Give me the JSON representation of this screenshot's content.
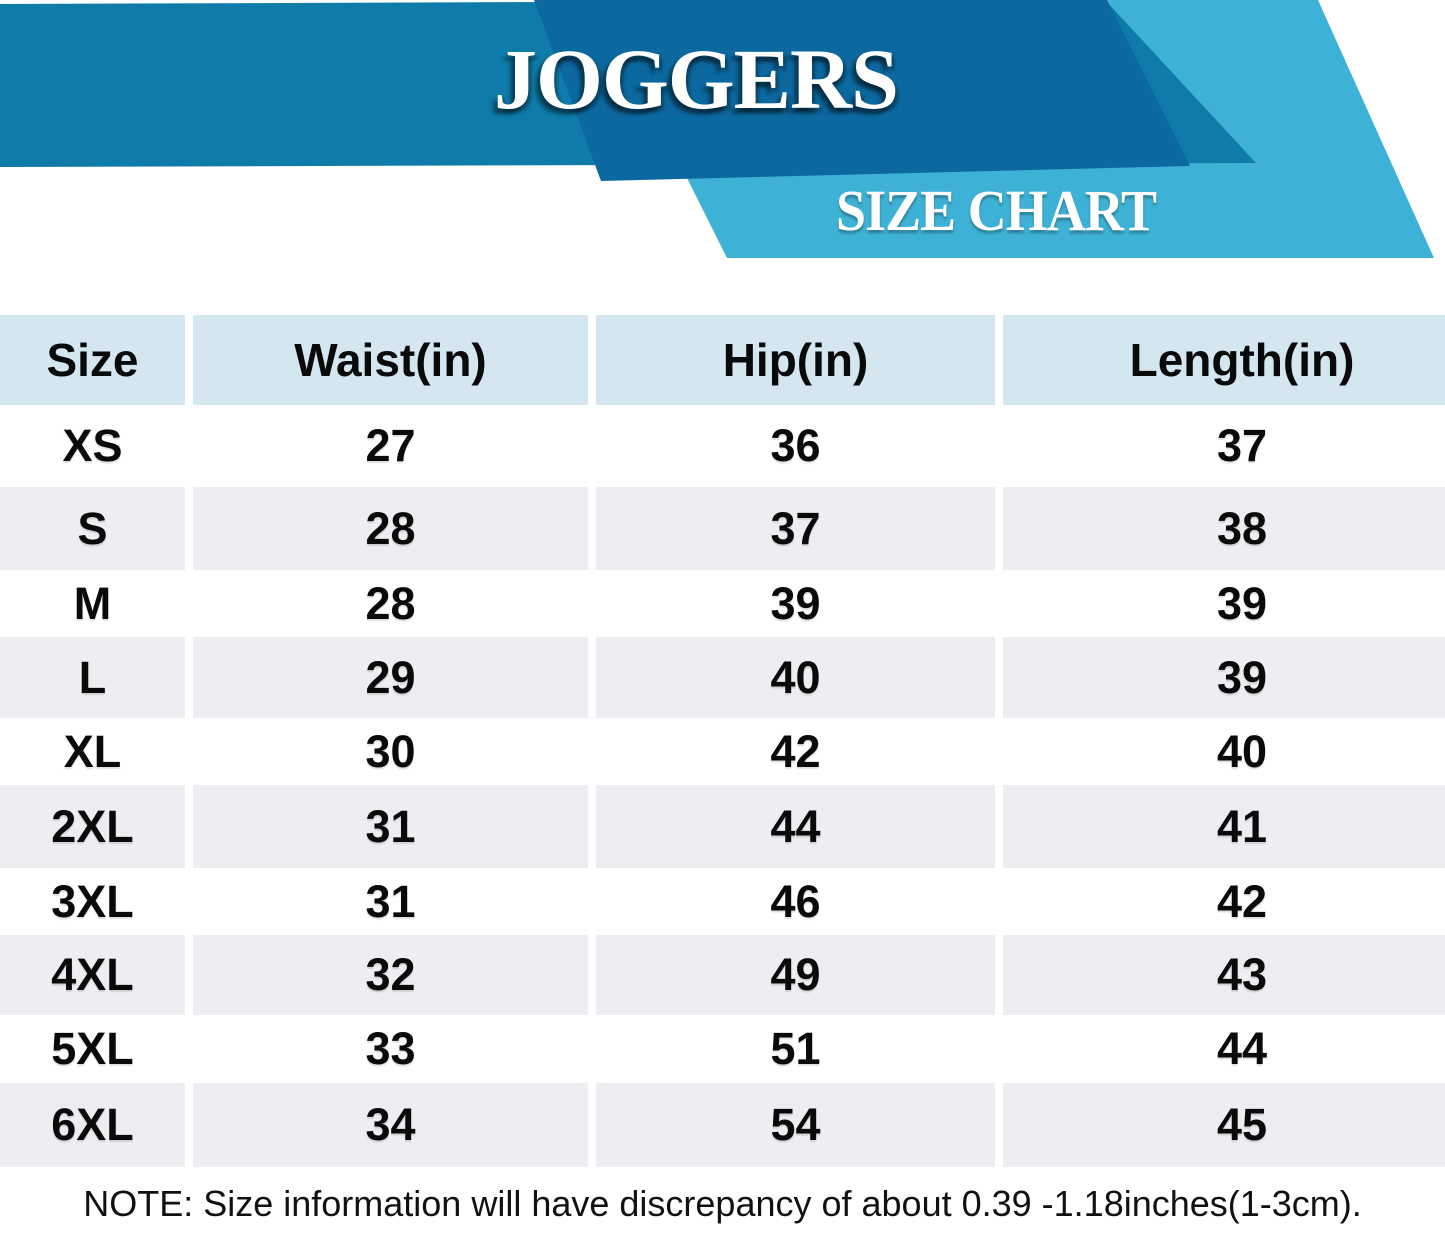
{
  "header": {
    "title": "JOGGERS",
    "subtitle": "SIZE CHART"
  },
  "colors": {
    "banner_dark": "#0C69A0",
    "banner_medium": "#0E7BA9",
    "banner_light": "#3EB2D6",
    "header_cell": "#D4E7F1",
    "row_alt": "#EDEDF2"
  },
  "table": {
    "columns": [
      "Size",
      "Waist(in)",
      "Hip(in)",
      "Length(in)"
    ],
    "rows": [
      [
        "XS",
        "27",
        "36",
        "37"
      ],
      [
        "S",
        "28",
        "37",
        "38"
      ],
      [
        "M",
        "28",
        "39",
        "39"
      ],
      [
        "L",
        "29",
        "40",
        "39"
      ],
      [
        "XL",
        "30",
        "42",
        "40"
      ],
      [
        "2XL",
        "31",
        "44",
        "41"
      ],
      [
        "3XL",
        "31",
        "46",
        "42"
      ],
      [
        "4XL",
        "32",
        "49",
        "43"
      ],
      [
        "5XL",
        "33",
        "51",
        "44"
      ],
      [
        "6XL",
        "34",
        "54",
        "45"
      ]
    ]
  },
  "note": "NOTE: Size information will have discrepancy of about 0.39 -1.18inches(1-3cm)."
}
